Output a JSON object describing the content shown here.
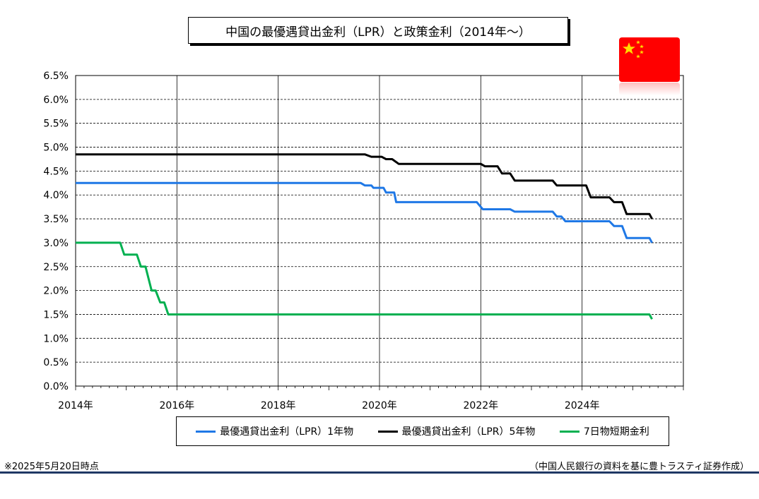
{
  "title": "中国の最優遇貸出金利（LPR）と政策金利（2014年～）",
  "note_left": "※2025年5月20日時点",
  "note_right": "（中国人民銀行の資料を基に豊トラスティ証券作成）",
  "colors": {
    "bottom_rule": "#1f3864",
    "flag_red": "#ff0000",
    "flag_star": "#ffde00"
  },
  "flag_icon": "china-flag-icon",
  "chart_data": {
    "type": "line",
    "title": "中国の最優遇貸出金利（LPR）と政策金利（2014年～）",
    "xlabel": "",
    "ylabel": "",
    "xlim": [
      2014,
      2026
    ],
    "ylim": [
      0,
      6.5
    ],
    "grid": true,
    "legend_position": "bottom",
    "x_ticks": [
      2014,
      2016,
      2018,
      2020,
      2022,
      2024
    ],
    "x_tick_labels": [
      "2014年",
      "2016年",
      "2018年",
      "2020年",
      "2022年",
      "2024年"
    ],
    "y_ticks": [
      0,
      0.5,
      1,
      1.5,
      2,
      2.5,
      3,
      3.5,
      4,
      4.5,
      5,
      5.5,
      6,
      6.5
    ],
    "y_tick_labels": [
      "0.0%",
      "0.5%",
      "1.0%",
      "1.5%",
      "2.0%",
      "2.5%",
      "3.0%",
      "3.5%",
      "4.0%",
      "4.5%",
      "5.0%",
      "5.5%",
      "6.0%",
      "6.5%"
    ],
    "series": [
      {
        "name": "最優遇貸出金利（LPR）1年物",
        "color": "#1f78e6",
        "points": [
          [
            2014.0,
            4.25
          ],
          [
            2019.63,
            4.25
          ],
          [
            2019.71,
            4.2
          ],
          [
            2019.84,
            4.2
          ],
          [
            2019.88,
            4.15
          ],
          [
            2020.08,
            4.15
          ],
          [
            2020.13,
            4.05
          ],
          [
            2020.29,
            4.05
          ],
          [
            2020.33,
            3.85
          ],
          [
            2021.92,
            3.85
          ],
          [
            2022.04,
            3.7
          ],
          [
            2022.58,
            3.7
          ],
          [
            2022.67,
            3.65
          ],
          [
            2023.42,
            3.65
          ],
          [
            2023.5,
            3.55
          ],
          [
            2023.59,
            3.55
          ],
          [
            2023.67,
            3.45
          ],
          [
            2024.54,
            3.45
          ],
          [
            2024.63,
            3.35
          ],
          [
            2024.79,
            3.35
          ],
          [
            2024.88,
            3.1
          ],
          [
            2025.33,
            3.1
          ],
          [
            2025.38,
            3.0
          ]
        ]
      },
      {
        "name": "最優遇貸出金利（LPR）5年物",
        "color": "#000000",
        "points": [
          [
            2014.0,
            4.85
          ],
          [
            2019.71,
            4.85
          ],
          [
            2019.84,
            4.8
          ],
          [
            2020.04,
            4.8
          ],
          [
            2020.13,
            4.75
          ],
          [
            2020.25,
            4.75
          ],
          [
            2020.38,
            4.65
          ],
          [
            2022.0,
            4.65
          ],
          [
            2022.08,
            4.6
          ],
          [
            2022.33,
            4.6
          ],
          [
            2022.42,
            4.45
          ],
          [
            2022.58,
            4.45
          ],
          [
            2022.67,
            4.3
          ],
          [
            2023.42,
            4.3
          ],
          [
            2023.5,
            4.2
          ],
          [
            2024.08,
            4.2
          ],
          [
            2024.17,
            3.95
          ],
          [
            2024.54,
            3.95
          ],
          [
            2024.63,
            3.85
          ],
          [
            2024.79,
            3.85
          ],
          [
            2024.88,
            3.6
          ],
          [
            2025.33,
            3.6
          ],
          [
            2025.38,
            3.5
          ]
        ]
      },
      {
        "name": "7日物短期金利",
        "color": "#00b050",
        "points": [
          [
            2014.0,
            3.0
          ],
          [
            2014.88,
            3.0
          ],
          [
            2014.96,
            2.75
          ],
          [
            2015.21,
            2.75
          ],
          [
            2015.29,
            2.5
          ],
          [
            2015.38,
            2.5
          ],
          [
            2015.5,
            2.0
          ],
          [
            2015.58,
            2.0
          ],
          [
            2015.67,
            1.75
          ],
          [
            2015.75,
            1.75
          ],
          [
            2015.83,
            1.5
          ],
          [
            2025.33,
            1.5
          ],
          [
            2025.38,
            1.4
          ]
        ]
      }
    ]
  }
}
